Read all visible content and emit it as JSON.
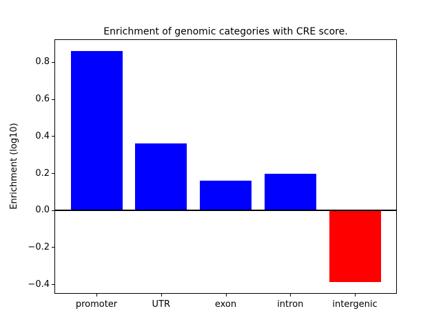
{
  "figure": {
    "background": "#ffffff"
  },
  "chart_data": {
    "type": "bar",
    "title": "Enrichment of genomic categories with CRE score.",
    "xlabel": "",
    "ylabel": "Enrichment (log10)",
    "categories": [
      "promoter",
      "UTR",
      "exon",
      "intron",
      "intergenic"
    ],
    "values": [
      0.86,
      0.36,
      0.16,
      0.195,
      -0.39
    ],
    "bar_colors": [
      "#0000ff",
      "#0000ff",
      "#0000ff",
      "#0000ff",
      "#ff0000"
    ],
    "positive_color": "#0000ff",
    "negative_color": "#ff0000",
    "bar_width": 0.8,
    "xlim": [
      -0.64,
      4.64
    ],
    "ylim": [
      -0.448,
      0.9185
    ],
    "yticks": [
      {
        "value": -0.4,
        "label": "−0.4"
      },
      {
        "value": -0.2,
        "label": "−0.2"
      },
      {
        "value": 0.0,
        "label": "0.0"
      },
      {
        "value": 0.2,
        "label": "0.2"
      },
      {
        "value": 0.4,
        "label": "0.4"
      },
      {
        "value": 0.6,
        "label": "0.6"
      },
      {
        "value": 0.8,
        "label": "0.8"
      }
    ],
    "zero_line": {
      "value": 0.0,
      "color": "#000000",
      "thickness_px": 2
    },
    "grid": false,
    "axis_color": "#000000"
  }
}
